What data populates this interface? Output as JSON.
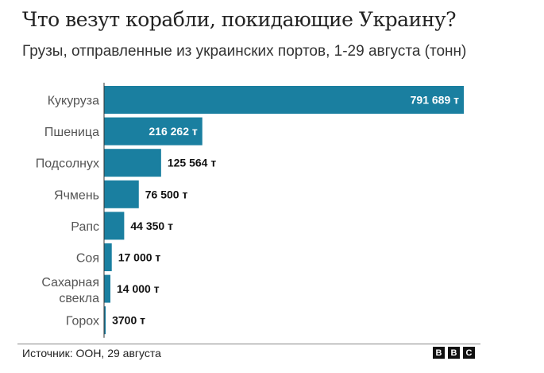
{
  "chart_data": {
    "type": "bar",
    "orientation": "horizontal",
    "title": "Что везут корабли, покидающие Украину?",
    "subtitle": "Грузы, отправленные из украинских портов, 1-29 августа (тонн)",
    "categories": [
      "Кукуруза",
      "Пшеница",
      "Подсолнух",
      "Ячмень",
      "Рапс",
      "Соя",
      "Сахарная свекла",
      "Горох"
    ],
    "values": [
      791689,
      216262,
      125564,
      76500,
      44350,
      17000,
      14000,
      3700
    ],
    "data_labels": [
      "791 689 т",
      "216 262 т",
      "125 564 т",
      "76 500 т",
      "44 350 т",
      "17 000 т",
      "14 000 т",
      "3700 т"
    ],
    "xlim": [
      0,
      791689
    ],
    "grid": false,
    "bar_color": "#1a7fa0"
  },
  "footer": {
    "source": "Источник: ООН, 29 августа",
    "logo": "BBC"
  }
}
